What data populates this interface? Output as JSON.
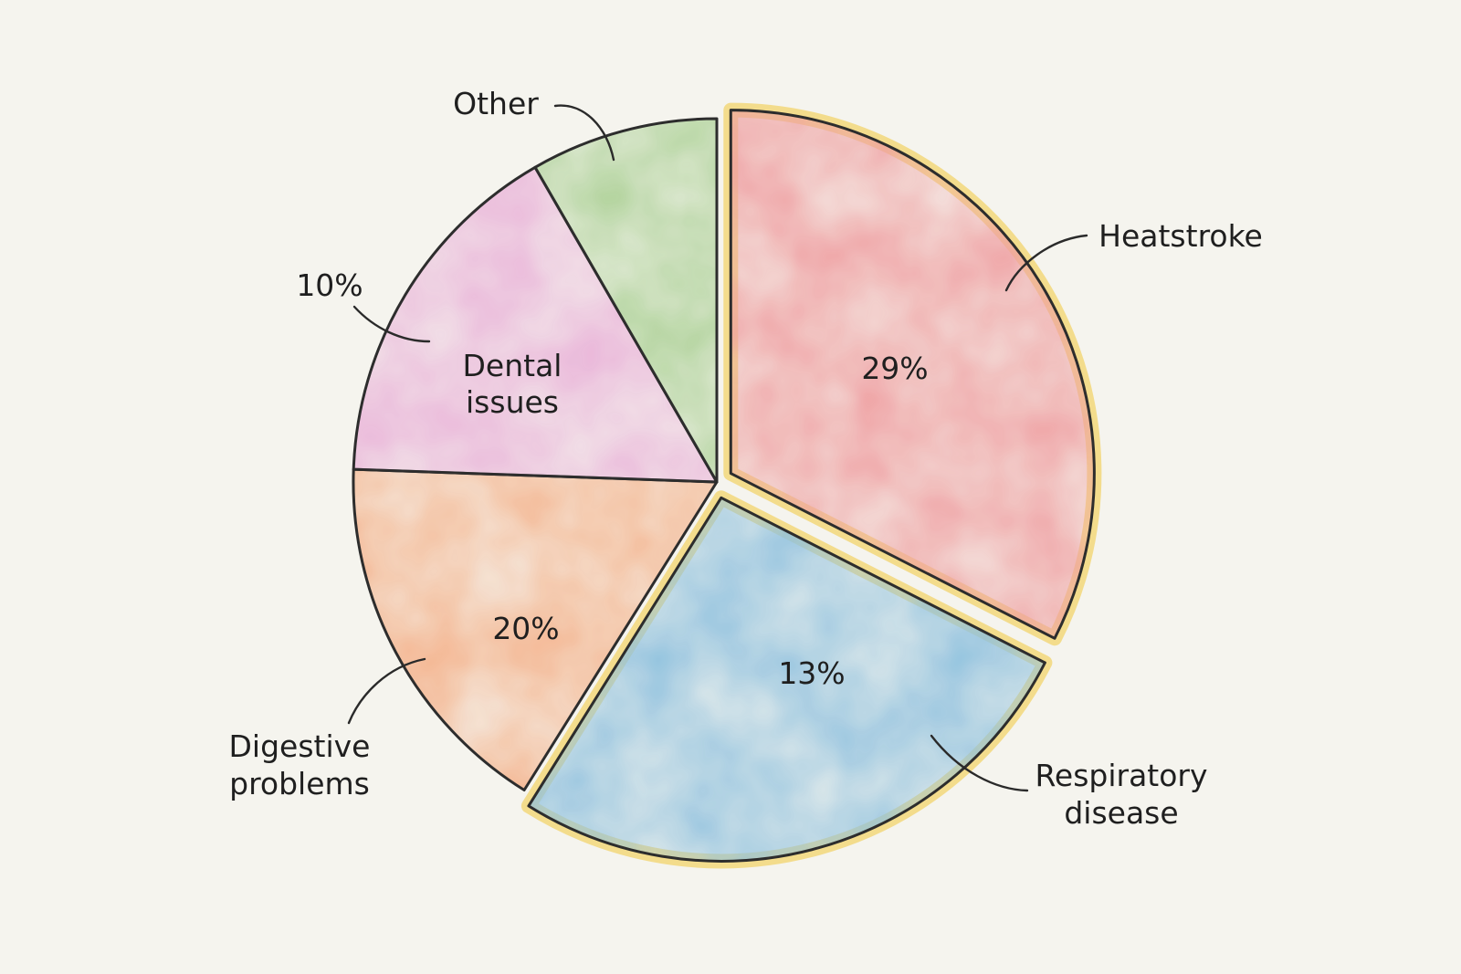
{
  "chart_data": {
    "type": "pie",
    "title": "",
    "slices": [
      {
        "label": "Heatstroke",
        "value": 29,
        "value_label": "29%",
        "color": "#ef9ea0",
        "highlighted": true
      },
      {
        "label": "Respiratory disease",
        "value": 13,
        "value_label": "13%",
        "color": "#8fc1de",
        "highlighted": true
      },
      {
        "label": "Digestive problems",
        "value": 20,
        "value_label": "20%",
        "color": "#f4b088",
        "highlighted": false
      },
      {
        "label": "Dental issues",
        "value": 10,
        "value_label": "10%",
        "color": "#e9b1d8",
        "highlighted": false
      },
      {
        "label": "Other",
        "value": 9,
        "value_label": "",
        "color": "#a9cf92",
        "highlighted": false
      }
    ],
    "highlight_color": "#f2d77a",
    "outline_color": "#2d2d2d",
    "background_color": "#f5f4ee"
  }
}
